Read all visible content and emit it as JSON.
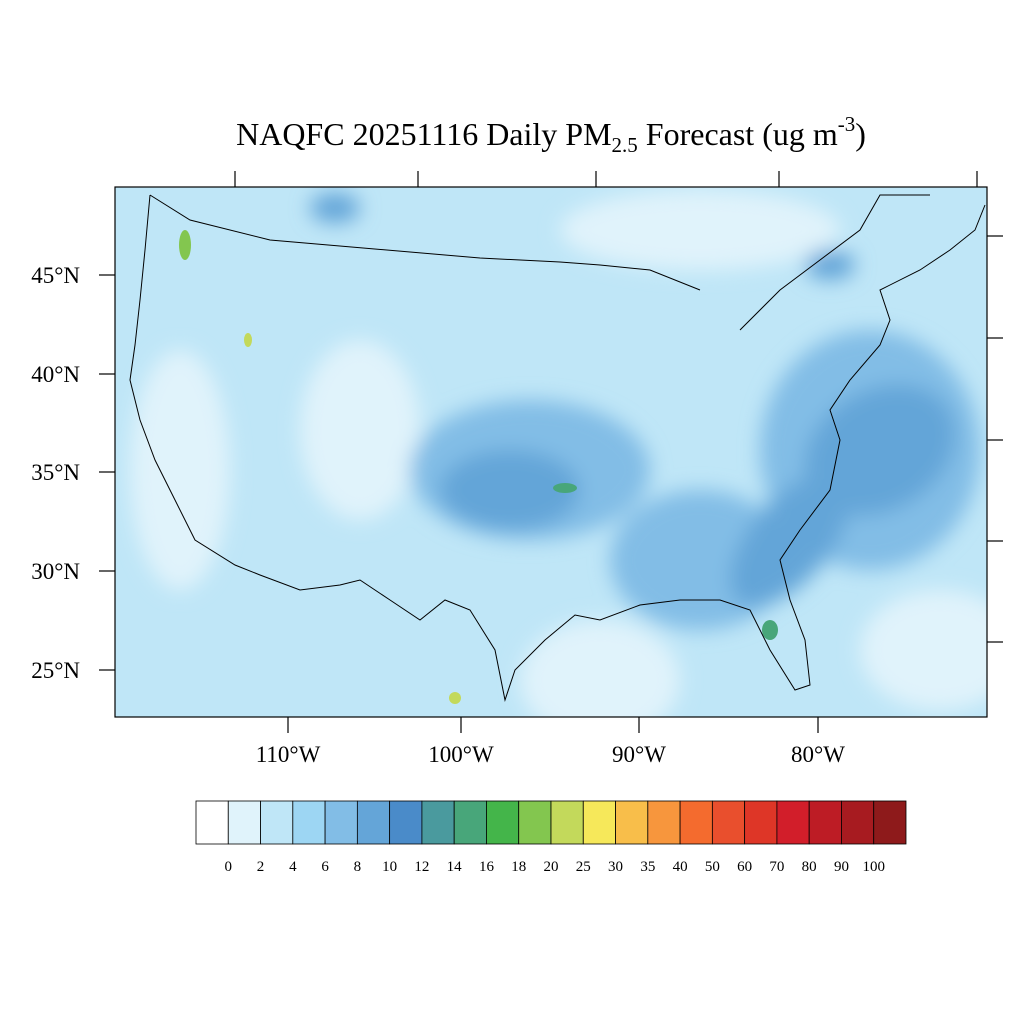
{
  "title": {
    "main": "NAQFC 20251116 Daily PM",
    "sub": "2.5",
    "mid": " Forecast (ug m",
    "sup": "-3",
    "end": ")"
  },
  "lat_labels": [
    "45°N",
    "40°N",
    "35°N",
    "30°N",
    "25°N"
  ],
  "lon_labels": [
    "110°W",
    "100°W",
    "90°W",
    "80°W"
  ],
  "colorbar": {
    "labels": [
      0,
      2,
      4,
      6,
      8,
      10,
      12,
      14,
      16,
      18,
      20,
      25,
      30,
      35,
      40,
      50,
      60,
      70,
      80,
      90,
      100
    ],
    "colors": [
      "#ffffff",
      "#e0f3fb",
      "#bfe6f7",
      "#9dd6f3",
      "#82bde6",
      "#64a5d8",
      "#4a8bc9",
      "#4a9a9e",
      "#48a67a",
      "#44b54a",
      "#83c64f",
      "#c3d95b",
      "#f6e85a",
      "#f8be4a",
      "#f7963d",
      "#f46b2e",
      "#e94f2d",
      "#de3627",
      "#d21e2a",
      "#bd1c25",
      "#a71b20",
      "#8e1a1b"
    ]
  }
}
